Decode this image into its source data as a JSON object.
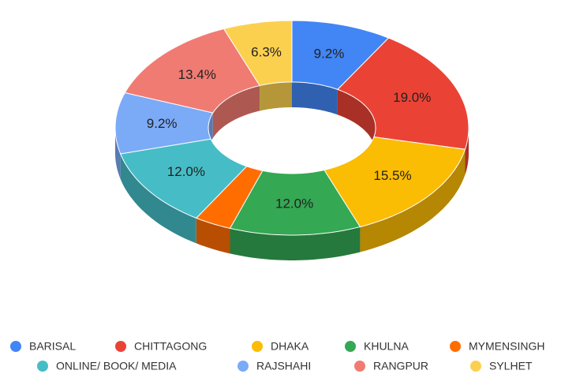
{
  "chart_data": {
    "type": "pie",
    "donut": true,
    "three_d": true,
    "categories": [
      "BARISAL",
      "CHITTAGONG",
      "DHAKA",
      "KHULNA",
      "MYMENSINGH",
      "ONLINE/ BOOK/ MEDIA",
      "RAJSHAHI",
      "RANGPUR",
      "SYLHET"
    ],
    "values": [
      9.2,
      19.0,
      15.5,
      12.0,
      3.4,
      12.0,
      9.2,
      13.4,
      6.3
    ],
    "value_labels": [
      "9.2%",
      "19.0%",
      "15.5%",
      "12.0%",
      null,
      "12.0%",
      "9.2%",
      "13.4%",
      "6.3%"
    ],
    "colors": [
      "#4285f4",
      "#ea4335",
      "#fbbc04",
      "#34a853",
      "#ff6d01",
      "#46bdc6",
      "#7baaf7",
      "#f07b72",
      "#fcd04f"
    ],
    "legend": "bottom"
  }
}
